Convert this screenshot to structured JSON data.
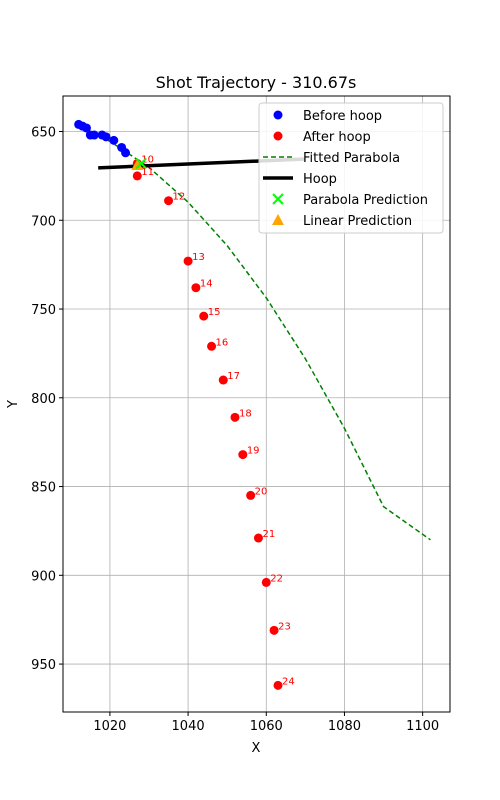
{
  "chart_data": {
    "type": "scatter",
    "title": "Shot Trajectory - 310.67s",
    "xlabel": "X",
    "ylabel": "Y",
    "xlim": [
      1008,
      1107
    ],
    "ylim": [
      977,
      630
    ],
    "y_inverted": true,
    "grid": true,
    "legend_placement": "top-right",
    "xticks": [
      1020,
      1040,
      1060,
      1080,
      1100
    ],
    "yticks": [
      650,
      700,
      750,
      800,
      850,
      900,
      950
    ],
    "colors": {
      "before": "#0000ff",
      "after": "#ff0000",
      "parabola": "#008000",
      "hoop": "#000000",
      "parabola_prediction": "#00ff00",
      "linear_prediction": "#ffa500"
    },
    "series": [
      {
        "name": "Before hoop",
        "marker": "circle",
        "x": [
          1012,
          1013,
          1014,
          1015,
          1016,
          1018,
          1019,
          1021,
          1023,
          1024
        ],
        "y": [
          646,
          647,
          648,
          652,
          652,
          652,
          653,
          655,
          659,
          662
        ]
      },
      {
        "name": "After hoop",
        "marker": "circle",
        "x": [
          1027,
          1027,
          1035,
          1040,
          1042,
          1044,
          1046,
          1049,
          1052,
          1054,
          1056,
          1058,
          1060,
          1062,
          1063
        ],
        "y": [
          668,
          675,
          689,
          723,
          738,
          754,
          771,
          790,
          811,
          832,
          855,
          879,
          904,
          931,
          962
        ],
        "labels": [
          "10",
          "11",
          "12",
          "13",
          "14",
          "15",
          "16",
          "17",
          "18",
          "19",
          "20",
          "21",
          "22",
          "23",
          "24"
        ]
      },
      {
        "name": "Fitted Parabola",
        "style": "dashed-line",
        "x": [
          1012,
          1020,
          1030,
          1040,
          1050,
          1060,
          1070,
          1080,
          1090,
          1102
        ],
        "y": [
          647.7,
          655.5,
          670.2,
          689.8,
          714.3,
          743.7,
          778.0,
          817.2,
          861.3,
          880
        ]
      },
      {
        "name": "Hoop",
        "style": "solid-line",
        "x": [
          1017,
          1070
        ],
        "y": [
          670.5,
          665.5
        ]
      },
      {
        "name": "Parabola Prediction",
        "marker": "x",
        "x": [
          1028
        ],
        "y": [
          668
        ]
      },
      {
        "name": "Linear Prediction",
        "marker": "triangle",
        "x": [
          1027
        ],
        "y": [
          669
        ]
      }
    ]
  }
}
